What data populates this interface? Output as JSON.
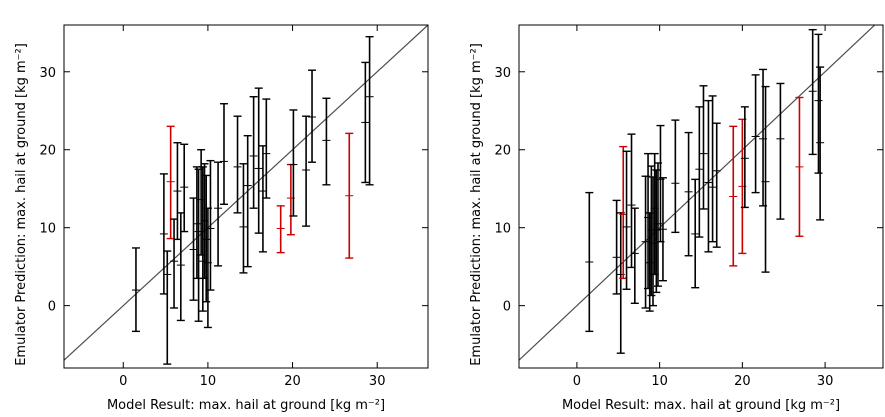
{
  "chart_data": [
    {
      "type": "scatter",
      "subtype": "errorbar",
      "xlabel": "Model Result: max. hail at ground [kg m⁻²]",
      "ylabel": "Emulator Prediction: max. hail at ground [kg m⁻²]",
      "xlim": [
        -7,
        36
      ],
      "ylim": [
        -8,
        36
      ],
      "xticks": [
        0,
        10,
        20,
        30
      ],
      "yticks": [
        0,
        10,
        20,
        30
      ],
      "grid": false,
      "reference_line": "y = x",
      "colors": {
        "normal": "#000000",
        "outlier": "#cc0000",
        "reference": "#4d4d4d"
      },
      "points": [
        {
          "x": 1.5,
          "y": 2.0,
          "lo": -3.3,
          "hi": 7.4,
          "c": "k"
        },
        {
          "x": 4.8,
          "y": 9.2,
          "lo": 1.5,
          "hi": 16.9,
          "c": "k"
        },
        {
          "x": 5.2,
          "y": 4.0,
          "lo": -7.5,
          "hi": 7.0,
          "c": "k"
        },
        {
          "x": 5.6,
          "y": 15.9,
          "lo": 8.6,
          "hi": 23.0,
          "c": "r"
        },
        {
          "x": 6.0,
          "y": 5.7,
          "lo": -0.3,
          "hi": 11.1,
          "c": "k"
        },
        {
          "x": 6.4,
          "y": 14.7,
          "lo": 8.5,
          "hi": 20.9,
          "c": "k"
        },
        {
          "x": 6.8,
          "y": 5.2,
          "lo": -1.9,
          "hi": 11.9,
          "c": "k"
        },
        {
          "x": 7.2,
          "y": 15.2,
          "lo": 9.5,
          "hi": 20.7,
          "c": "k"
        },
        {
          "x": 8.3,
          "y": 7.2,
          "lo": 0.7,
          "hi": 13.8,
          "c": "k"
        },
        {
          "x": 8.7,
          "y": 10.5,
          "lo": 3.5,
          "hi": 17.8,
          "c": "k"
        },
        {
          "x": 8.9,
          "y": 9.5,
          "lo": -2.0,
          "hi": 17.5,
          "c": "k"
        },
        {
          "x": 9.2,
          "y": 13.6,
          "lo": 6.5,
          "hi": 20.0,
          "c": "k"
        },
        {
          "x": 9.4,
          "y": 5.7,
          "lo": -0.7,
          "hi": 17.8,
          "c": "k"
        },
        {
          "x": 9.6,
          "y": 10.9,
          "lo": 3.5,
          "hi": 18.2,
          "c": "k"
        },
        {
          "x": 9.8,
          "y": 8.5,
          "lo": 0.5,
          "hi": 16.7,
          "c": "k"
        },
        {
          "x": 10.0,
          "y": 5.5,
          "lo": -2.8,
          "hi": 12.5,
          "c": "k"
        },
        {
          "x": 10.3,
          "y": 9.9,
          "lo": 2.0,
          "hi": 18.6,
          "c": "k"
        },
        {
          "x": 11.2,
          "y": 12.5,
          "lo": 5.1,
          "hi": 18.4,
          "c": "k"
        },
        {
          "x": 11.9,
          "y": 18.5,
          "lo": 13.0,
          "hi": 25.9,
          "c": "k"
        },
        {
          "x": 13.5,
          "y": 17.8,
          "lo": 11.9,
          "hi": 24.3,
          "c": "k"
        },
        {
          "x": 14.2,
          "y": 10.1,
          "lo": 4.2,
          "hi": 18.2,
          "c": "k"
        },
        {
          "x": 14.7,
          "y": 15.4,
          "lo": 5.0,
          "hi": 21.8,
          "c": "k"
        },
        {
          "x": 15.4,
          "y": 19.2,
          "lo": 12.5,
          "hi": 26.8,
          "c": "k"
        },
        {
          "x": 16.0,
          "y": 17.6,
          "lo": 9.3,
          "hi": 27.9,
          "c": "k"
        },
        {
          "x": 16.5,
          "y": 14.7,
          "lo": 6.9,
          "hi": 20.5,
          "c": "k"
        },
        {
          "x": 16.9,
          "y": 19.5,
          "lo": 13.8,
          "hi": 26.5,
          "c": "k"
        },
        {
          "x": 18.6,
          "y": 9.9,
          "lo": 6.8,
          "hi": 12.8,
          "c": "r"
        },
        {
          "x": 19.8,
          "y": 13.8,
          "lo": 9.1,
          "hi": 18.1,
          "c": "r"
        },
        {
          "x": 20.1,
          "y": 18.1,
          "lo": 11.5,
          "hi": 25.1,
          "c": "k"
        },
        {
          "x": 21.6,
          "y": 17.4,
          "lo": 10.2,
          "hi": 24.3,
          "c": "k"
        },
        {
          "x": 22.3,
          "y": 24.2,
          "lo": 18.4,
          "hi": 30.2,
          "c": "k"
        },
        {
          "x": 24.0,
          "y": 21.2,
          "lo": 15.5,
          "hi": 26.6,
          "c": "k"
        },
        {
          "x": 26.7,
          "y": 14.1,
          "lo": 6.1,
          "hi": 22.1,
          "c": "r"
        },
        {
          "x": 28.6,
          "y": 23.5,
          "lo": 15.8,
          "hi": 31.2,
          "c": "k"
        },
        {
          "x": 29.1,
          "y": 26.8,
          "lo": 15.5,
          "hi": 34.5,
          "c": "k"
        }
      ]
    },
    {
      "type": "scatter",
      "subtype": "errorbar",
      "xlabel": "Model Result: max. hail at ground [kg m⁻²]",
      "ylabel": "Emulator Prediction: max. hail at ground [kg m⁻²]",
      "xlim": [
        -7,
        37
      ],
      "ylim": [
        -8,
        36
      ],
      "xticks": [
        0,
        10,
        20,
        30
      ],
      "yticks": [
        0,
        10,
        20,
        30
      ],
      "grid": false,
      "reference_line": "y = x",
      "colors": {
        "normal": "#000000",
        "outlier": "#cc0000",
        "reference": "#4d4d4d"
      },
      "points": [
        {
          "x": 1.5,
          "y": 5.6,
          "lo": -3.3,
          "hi": 14.5,
          "c": "k"
        },
        {
          "x": 4.8,
          "y": 6.2,
          "lo": 1.5,
          "hi": 13.5,
          "c": "k"
        },
        {
          "x": 5.3,
          "y": 4.0,
          "lo": -6.1,
          "hi": 11.9,
          "c": "k"
        },
        {
          "x": 5.6,
          "y": 11.7,
          "lo": 3.5,
          "hi": 20.4,
          "c": "r"
        },
        {
          "x": 6.0,
          "y": 10.1,
          "lo": 2.1,
          "hi": 19.8,
          "c": "k"
        },
        {
          "x": 6.6,
          "y": 12.9,
          "lo": 4.9,
          "hi": 22.0,
          "c": "k"
        },
        {
          "x": 7.0,
          "y": 6.7,
          "lo": 0.3,
          "hi": 12.5,
          "c": "k"
        },
        {
          "x": 8.3,
          "y": 8.2,
          "lo": -0.3,
          "hi": 16.6,
          "c": "k"
        },
        {
          "x": 8.6,
          "y": 11.3,
          "lo": 2.2,
          "hi": 19.5,
          "c": "k"
        },
        {
          "x": 8.8,
          "y": 5.5,
          "lo": -0.7,
          "hi": 11.9,
          "c": "k"
        },
        {
          "x": 9.0,
          "y": 9.7,
          "lo": 1.3,
          "hi": 17.9,
          "c": "k"
        },
        {
          "x": 9.2,
          "y": 8.0,
          "lo": 0.0,
          "hi": 16.5,
          "c": "k"
        },
        {
          "x": 9.4,
          "y": 12.5,
          "lo": 4.0,
          "hi": 19.5,
          "c": "k"
        },
        {
          "x": 9.6,
          "y": 9.7,
          "lo": 1.7,
          "hi": 17.4,
          "c": "k"
        },
        {
          "x": 9.8,
          "y": 10.5,
          "lo": 2.5,
          "hi": 18.3,
          "c": "k"
        },
        {
          "x": 10.1,
          "y": 16.2,
          "lo": 8.2,
          "hi": 23.1,
          "c": "k"
        },
        {
          "x": 10.4,
          "y": 9.8,
          "lo": 3.2,
          "hi": 16.4,
          "c": "k"
        },
        {
          "x": 11.9,
          "y": 15.7,
          "lo": 9.4,
          "hi": 23.8,
          "c": "k"
        },
        {
          "x": 13.5,
          "y": 14.6,
          "lo": 6.4,
          "hi": 22.2,
          "c": "k"
        },
        {
          "x": 14.3,
          "y": 9.2,
          "lo": 2.3,
          "hi": 16.2,
          "c": "k"
        },
        {
          "x": 14.8,
          "y": 17.5,
          "lo": 8.8,
          "hi": 25.5,
          "c": "k"
        },
        {
          "x": 15.3,
          "y": 19.5,
          "lo": 12.4,
          "hi": 28.2,
          "c": "k"
        },
        {
          "x": 15.9,
          "y": 15.8,
          "lo": 6.9,
          "hi": 26.3,
          "c": "k"
        },
        {
          "x": 16.4,
          "y": 15.2,
          "lo": 8.2,
          "hi": 26.9,
          "c": "k"
        },
        {
          "x": 16.9,
          "y": 17.3,
          "lo": 7.5,
          "hi": 23.4,
          "c": "k"
        },
        {
          "x": 18.9,
          "y": 14.0,
          "lo": 5.1,
          "hi": 23.0,
          "c": "r"
        },
        {
          "x": 20.0,
          "y": 15.3,
          "lo": 6.7,
          "hi": 23.9,
          "c": "r"
        },
        {
          "x": 20.3,
          "y": 18.9,
          "lo": 12.6,
          "hi": 25.5,
          "c": "k"
        },
        {
          "x": 21.6,
          "y": 21.7,
          "lo": 14.5,
          "hi": 29.6,
          "c": "k"
        },
        {
          "x": 22.5,
          "y": 21.4,
          "lo": 12.8,
          "hi": 30.3,
          "c": "k"
        },
        {
          "x": 22.8,
          "y": 15.9,
          "lo": 4.3,
          "hi": 28.1,
          "c": "k"
        },
        {
          "x": 24.6,
          "y": 21.4,
          "lo": 11.1,
          "hi": 28.5,
          "c": "k"
        },
        {
          "x": 26.9,
          "y": 17.8,
          "lo": 8.9,
          "hi": 26.7,
          "c": "r"
        },
        {
          "x": 28.5,
          "y": 27.5,
          "lo": 19.4,
          "hi": 35.4,
          "c": "k"
        },
        {
          "x": 29.2,
          "y": 26.3,
          "lo": 17.0,
          "hi": 34.8,
          "c": "k"
        },
        {
          "x": 29.4,
          "y": 20.9,
          "lo": 11.0,
          "hi": 30.6,
          "c": "k"
        }
      ]
    }
  ]
}
